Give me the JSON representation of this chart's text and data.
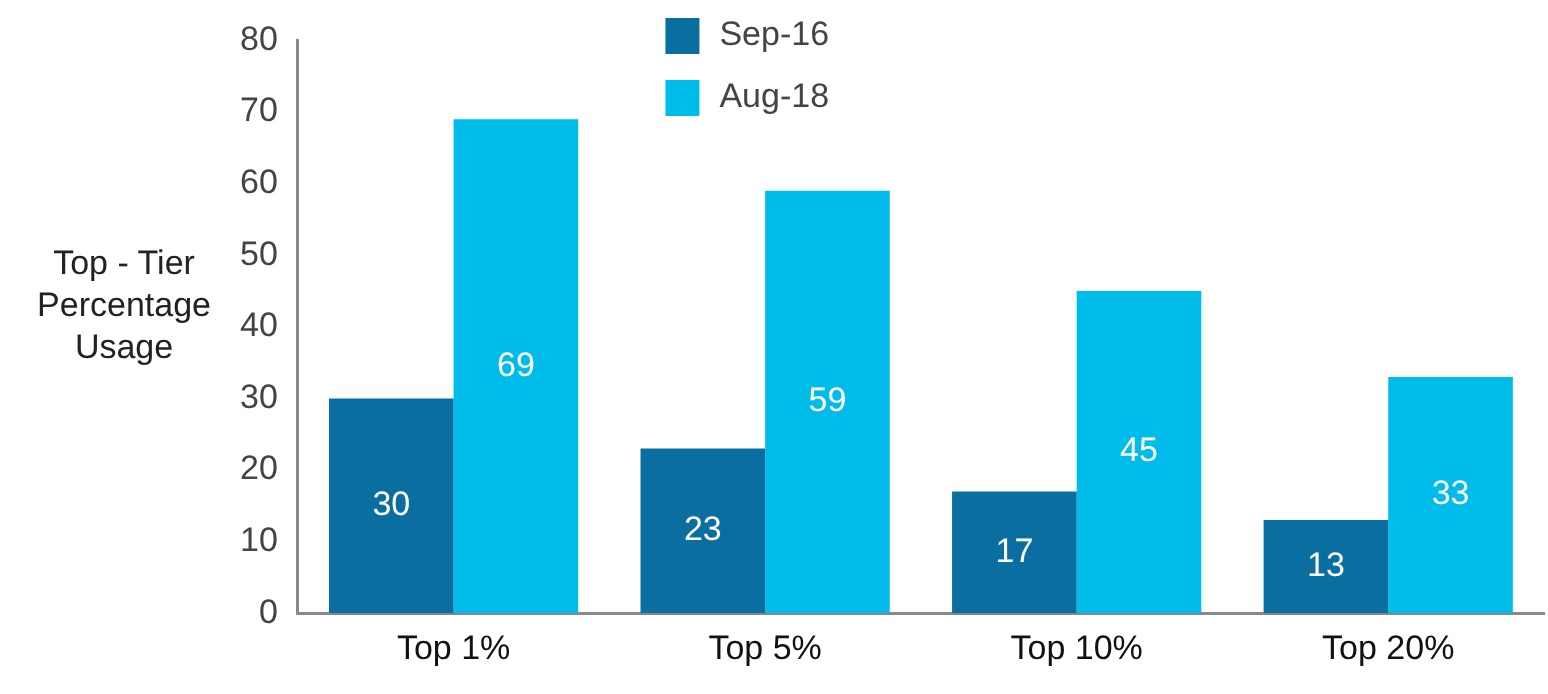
{
  "chart_data": {
    "type": "bar",
    "ylabel": "Top - Tier Percentage Usage",
    "categories": [
      "Top 1%",
      "Top 5%",
      "Top 10%",
      "Top 20%"
    ],
    "series": [
      {
        "name": "Sep-16",
        "color": "#0a6fa0",
        "values": [
          30,
          23,
          17,
          13
        ]
      },
      {
        "name": "Aug-18",
        "color": "#00bceb",
        "values": [
          69,
          59,
          45,
          33
        ]
      }
    ],
    "ylim": [
      0,
      80
    ],
    "yticks": [
      0,
      10,
      20,
      30,
      40,
      50,
      60,
      70,
      80
    ],
    "grid": false,
    "legend": "top",
    "data_labels": true
  }
}
